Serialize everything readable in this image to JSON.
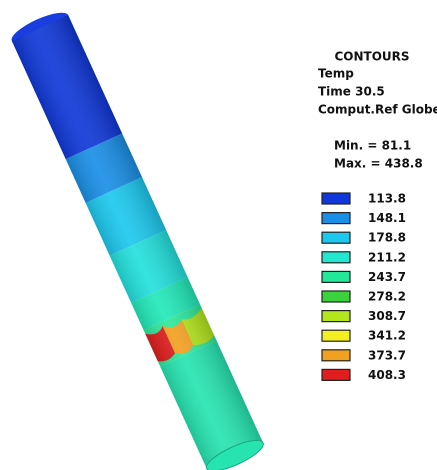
{
  "header": {
    "title": "CONTOURS",
    "lines": [
      "Temp",
      "Time 30.5",
      "Comput.Ref Globe"
    ],
    "min": "Min. = 81.1",
    "max": "Max. = 438.8"
  },
  "legend": [
    {
      "label": 113.8,
      "color": "#1038d8"
    },
    {
      "label": 148.1,
      "color": "#1a8fe6"
    },
    {
      "label": 178.8,
      "color": "#1cc8ee"
    },
    {
      "label": 211.2,
      "color": "#22e8d0"
    },
    {
      "label": 243.7,
      "color": "#22e89a"
    },
    {
      "label": 278.2,
      "color": "#3cd23c"
    },
    {
      "label": 308.7,
      "color": "#b4e61e"
    },
    {
      "label": 341.2,
      "color": "#f2f020"
    },
    {
      "label": 373.7,
      "color": "#f2a020"
    },
    {
      "label": 408.3,
      "color": "#e01e1e"
    }
  ]
}
